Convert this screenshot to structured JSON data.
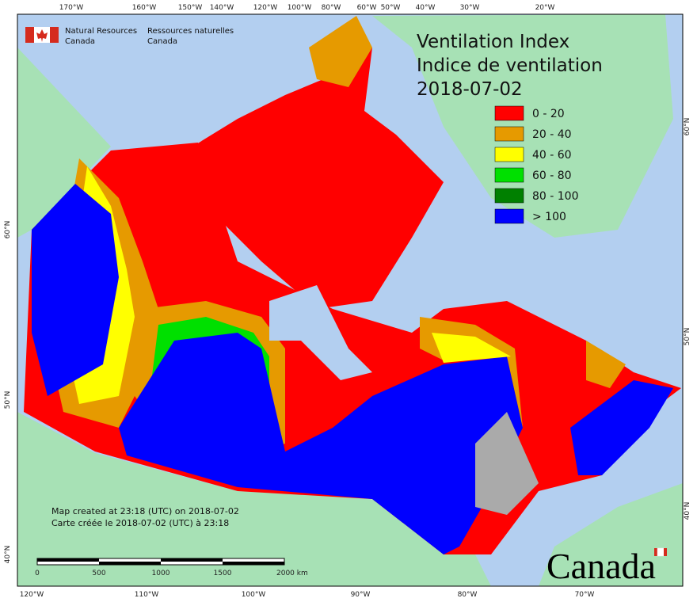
{
  "header": {
    "org_en": [
      "Natural Resources",
      "Canada"
    ],
    "org_fr": [
      "Ressources naturelles",
      "Canada"
    ]
  },
  "title": [
    "Ventilation Index",
    "Indice de ventilation",
    "2018-07-02"
  ],
  "legend": [
    {
      "label": "0 - 20",
      "color": "#ff0000"
    },
    {
      "label": "20 - 40",
      "color": "#e69a00"
    },
    {
      "label": "40 - 60",
      "color": "#ffff00"
    },
    {
      "label": "60 - 80",
      "color": "#00e000"
    },
    {
      "label": "80 - 100",
      "color": "#008000"
    },
    {
      "label": "> 100",
      "color": "#0000ff"
    }
  ],
  "graticule": {
    "top": [
      "170°W",
      "160°W",
      "150°W",
      "140°W",
      "120°W",
      "100°W",
      "80°W",
      "60°W",
      "50°W",
      "40°W",
      "30°W",
      "20°W"
    ],
    "bottom": [
      "120°W",
      "110°W",
      "100°W",
      "90°W",
      "80°W",
      "70°W"
    ],
    "left": [
      "60°N",
      "50°N",
      "40°N"
    ],
    "right": [
      "60°N",
      "50°N",
      "40°N"
    ]
  },
  "notes": [
    "Map created at 23:18 (UTC) on 2018-07-02",
    "Carte créée le 2018-07-02 (UTC) à 23:18"
  ],
  "scale_bar": [
    "0",
    "500",
    "1000",
    "1500",
    "2000 km"
  ],
  "wordmark": "Canada"
}
